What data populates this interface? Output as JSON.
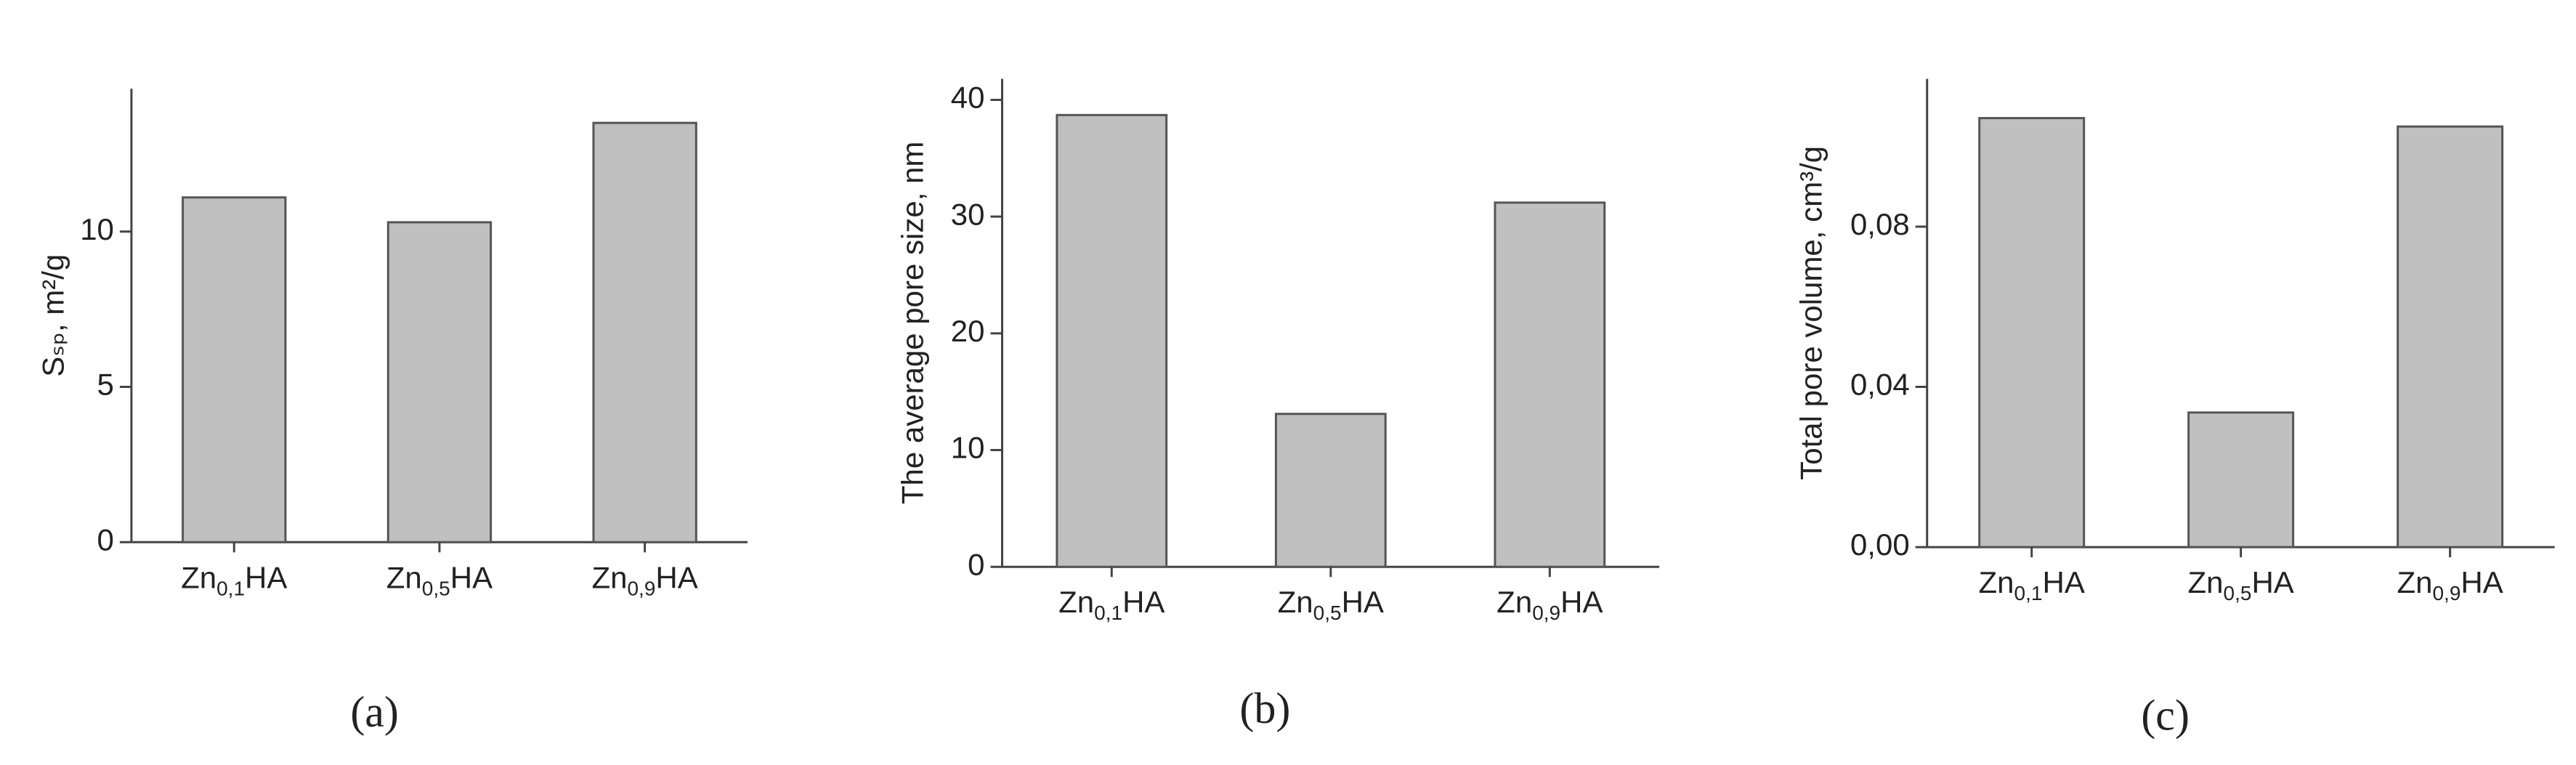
{
  "chart_data": [
    {
      "type": "bar",
      "ylabel": "Sₛₚ, m²/g",
      "caption": "(a)",
      "categories": [
        "Zn0,1HA",
        "Zn0,5HA",
        "Zn0,9HA"
      ],
      "values": [
        11.1,
        10.3,
        13.5
      ],
      "color": "#c0c0c0",
      "ylim": [
        0,
        14.6
      ],
      "yticks": [
        0,
        5,
        10
      ]
    },
    {
      "type": "bar",
      "ylabel": "The average pore size, nm",
      "caption": "(b)",
      "categories": [
        "Zn0,1HA",
        "Zn0,5HA",
        "Zn0,9HA"
      ],
      "values": [
        38.7,
        13.1,
        31.2
      ],
      "color": "#c0c0c0",
      "ylim": [
        0,
        41.8
      ],
      "yticks": [
        0,
        10,
        20,
        30,
        40
      ]
    },
    {
      "type": "bar",
      "ylabel": "Total pore volume, cm³/g",
      "caption": "(c)",
      "categories": [
        "Zn0,1HA",
        "Zn0,5HA",
        "Zn0,9HA"
      ],
      "values": [
        0.1071,
        0.0336,
        0.105
      ],
      "color": "#c0c0c0",
      "ylim": [
        0,
        0.1169
      ],
      "yticks": [
        {
          "value": 0,
          "label": "0,00"
        },
        {
          "value": 0.04,
          "label": "0,04"
        },
        {
          "value": 0.08,
          "label": "0,08"
        }
      ]
    }
  ]
}
